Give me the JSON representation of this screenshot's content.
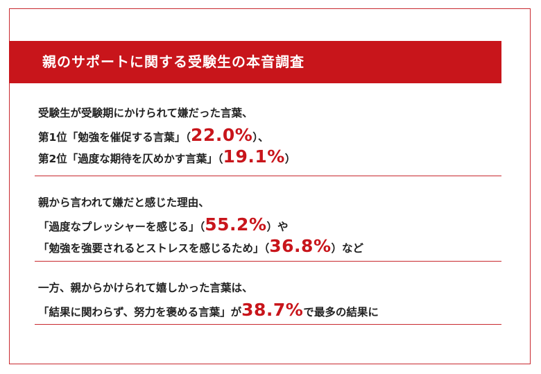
{
  "title": "親のサポートに関する受験生の本音調査",
  "section1": {
    "line1": "受験生が受験期にかけられて嫌だった言葉、",
    "line2_pre": "第1位「勉強を催促する言葉」（",
    "line2_pct": "22.0%",
    "line2_post": "）、",
    "line3_pre": "第2位「過度な期待を仄めかす言葉」（",
    "line3_pct": "19.1%",
    "line3_post": "）"
  },
  "section2": {
    "line1": "親から言われて嫌だと感じた理由、",
    "line2_pre": "「過度なプレッシャーを感じる」（",
    "line2_pct": "55.2%",
    "line2_post": "）や",
    "line3_pre": "「勉強を強要されるとストレスを感じるため」（",
    "line3_pct": "36.8%",
    "line3_post": "）など"
  },
  "section3": {
    "line1": "一方、親からかけられて嬉しかった言葉は、",
    "line2_pre": "「結果に関わらず、努力を褒める言葉」が",
    "line2_pct": "38.7%",
    "line2_post": "で最多の結果に"
  },
  "colors": {
    "accent": "#c8151b",
    "text": "#222222",
    "background": "#ffffff"
  }
}
